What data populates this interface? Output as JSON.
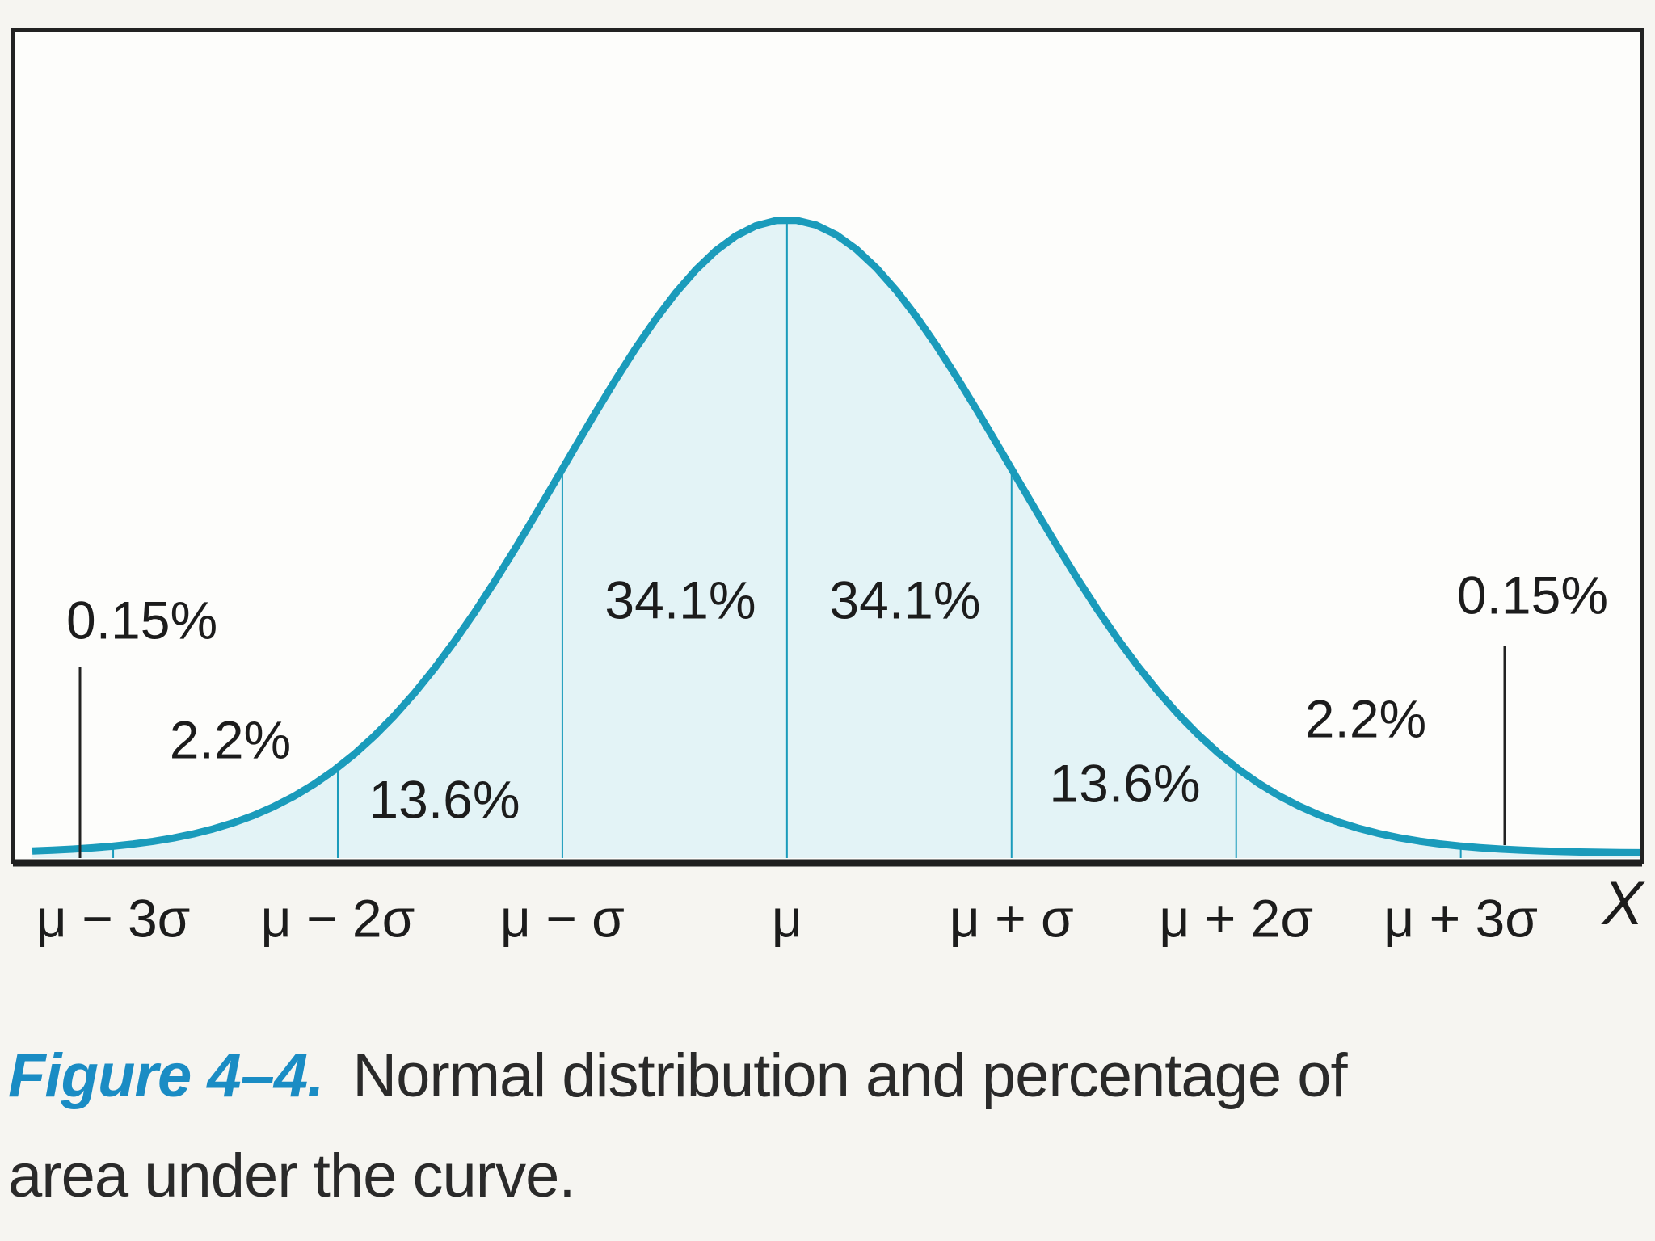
{
  "chart_data": {
    "type": "normal",
    "categories_label": "X",
    "xticks": [
      {
        "value": -3,
        "label": "μ − 3σ"
      },
      {
        "value": -2,
        "label": "μ − 2σ"
      },
      {
        "value": -1,
        "label": "μ − σ"
      },
      {
        "value": 0,
        "label": "μ"
      },
      {
        "value": 1,
        "label": "μ + σ"
      },
      {
        "value": 2,
        "label": "μ + 2σ"
      },
      {
        "value": 3,
        "label": "μ + 3σ"
      }
    ],
    "xlim": [
      -3.36,
      3.8
    ],
    "values": [
      0.15,
      2.2,
      13.6,
      34.1,
      34.1,
      13.6,
      2.2,
      0.15
    ],
    "value_labels": [
      "0.15%",
      "2.2%",
      "13.6%",
      "34.1%",
      "34.1%",
      "13.6%",
      "2.2%",
      "0.15%"
    ],
    "color": "#1a9bbb",
    "fill": "#e3f3f6",
    "caption_label": "Figure 4–4.",
    "caption_lines": [
      "Normal distribution and percentage of",
      "area under the curve."
    ]
  }
}
